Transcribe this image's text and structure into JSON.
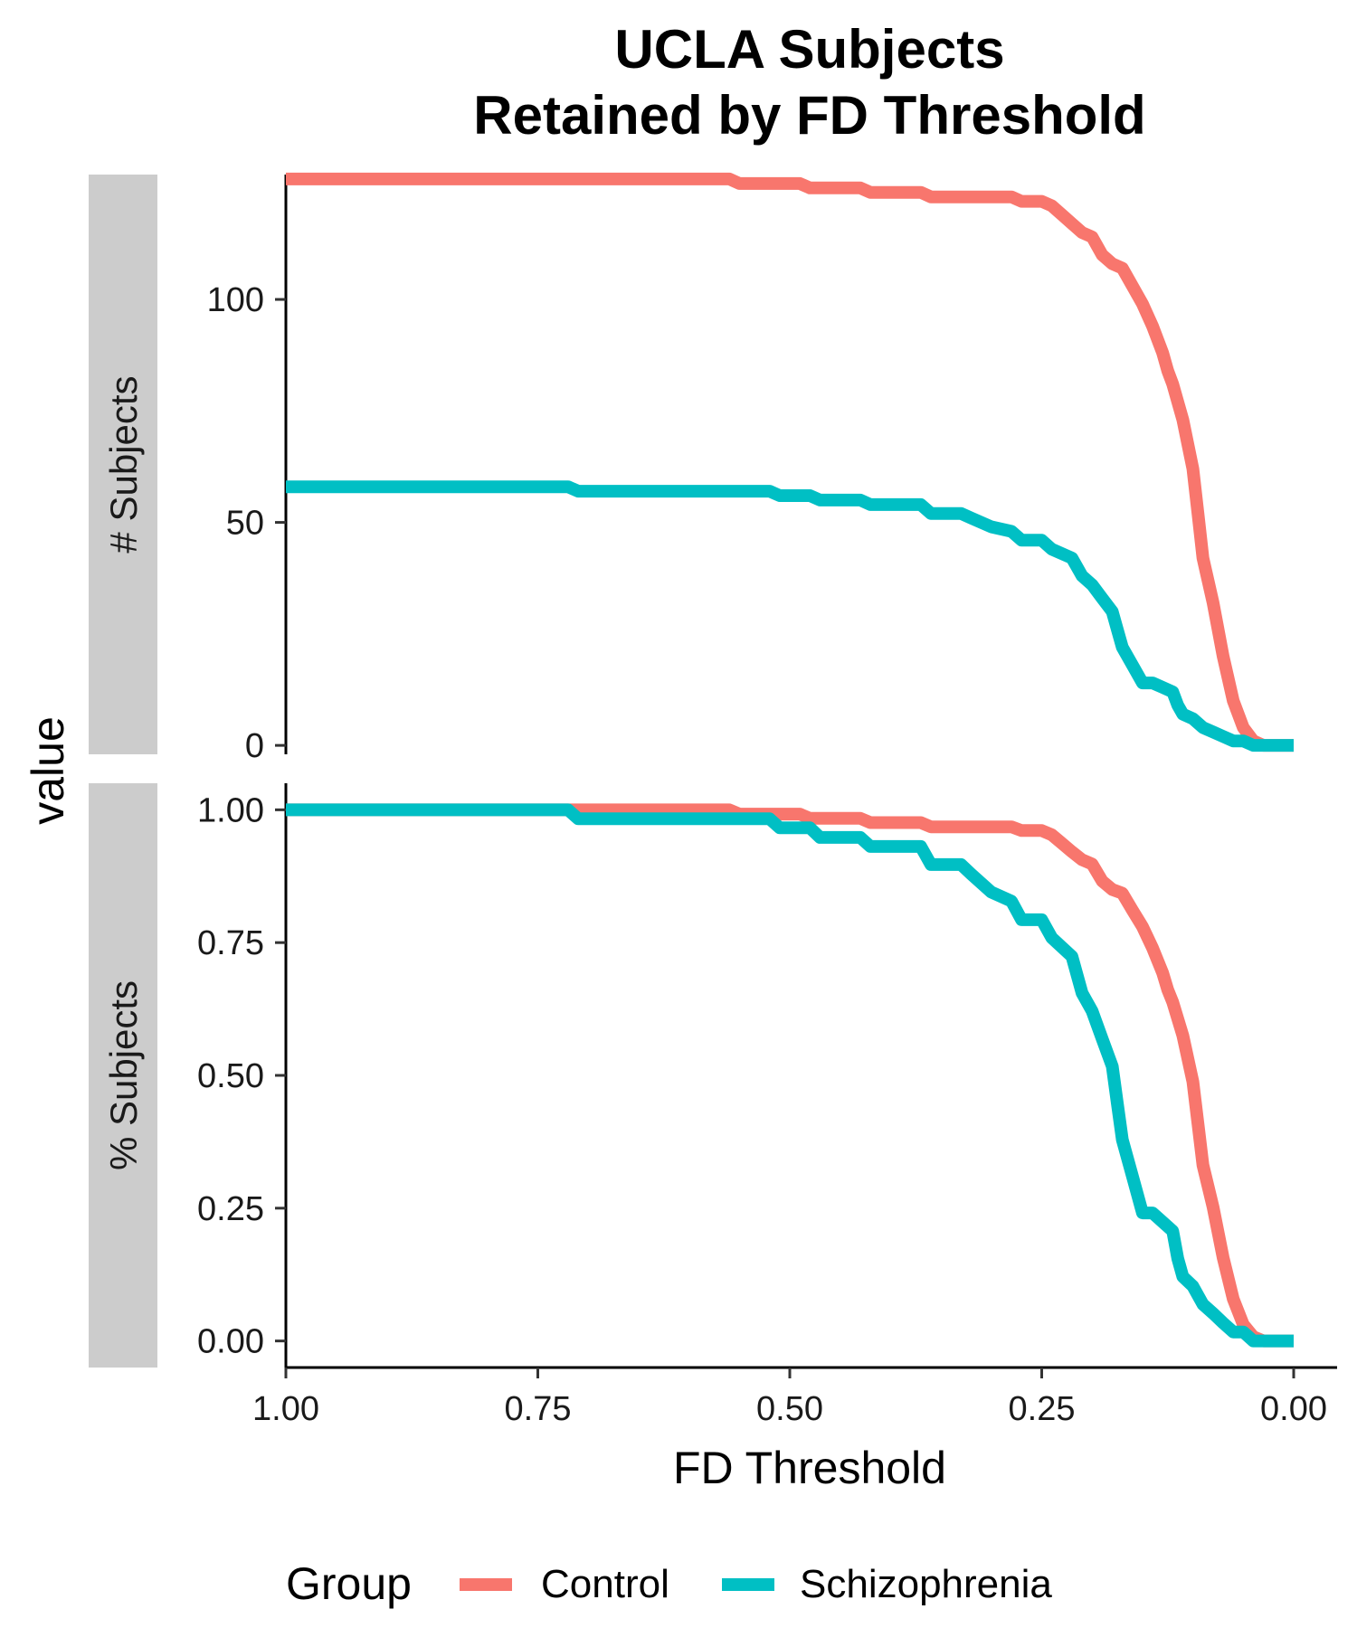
{
  "chart_data": {
    "type": "line",
    "title": [
      "UCLA Subjects",
      "Retained by FD Threshold"
    ],
    "xlabel": "FD Threshold",
    "ylabel": "value",
    "x_reversed": true,
    "xlim": [
      1.0,
      0.0
    ],
    "x_ticks": [
      "1.00",
      "0.75",
      "0.50",
      "0.25",
      "0.00"
    ],
    "grid": false,
    "legend": {
      "title": "Group",
      "placement": "bottom"
    },
    "series_styles": [
      {
        "name": "Control",
        "color": "#F8766D"
      },
      {
        "name": "Schizophrenia",
        "color": "#00BFC4"
      }
    ],
    "panels": [
      {
        "strip": "# Subjects",
        "ylim": [
          -2,
          128
        ],
        "y_ticks": [
          "0",
          "50",
          "100"
        ],
        "series": [
          {
            "name": "Control",
            "color": "#F8766D",
            "points": [
              [
                1.0,
                127
              ],
              [
                0.56,
                127
              ],
              [
                0.55,
                126
              ],
              [
                0.49,
                126
              ],
              [
                0.48,
                125
              ],
              [
                0.43,
                125
              ],
              [
                0.42,
                124
              ],
              [
                0.37,
                124
              ],
              [
                0.36,
                123
              ],
              [
                0.28,
                123
              ],
              [
                0.27,
                122
              ],
              [
                0.25,
                122
              ],
              [
                0.24,
                121
              ],
              [
                0.23,
                119
              ],
              [
                0.22,
                117
              ],
              [
                0.21,
                115
              ],
              [
                0.2,
                114
              ],
              [
                0.19,
                110
              ],
              [
                0.18,
                108
              ],
              [
                0.17,
                107
              ],
              [
                0.16,
                103
              ],
              [
                0.15,
                99
              ],
              [
                0.14,
                94
              ],
              [
                0.13,
                88
              ],
              [
                0.125,
                84
              ],
              [
                0.12,
                81
              ],
              [
                0.11,
                73
              ],
              [
                0.1,
                62
              ],
              [
                0.095,
                52
              ],
              [
                0.09,
                42
              ],
              [
                0.08,
                32
              ],
              [
                0.07,
                20
              ],
              [
                0.06,
                10
              ],
              [
                0.05,
                4
              ],
              [
                0.04,
                1
              ],
              [
                0.03,
                0
              ],
              [
                0.0,
                0
              ]
            ]
          },
          {
            "name": "Schizophrenia",
            "color": "#00BFC4",
            "points": [
              [
                1.0,
                58
              ],
              [
                0.72,
                58
              ],
              [
                0.71,
                57
              ],
              [
                0.52,
                57
              ],
              [
                0.51,
                56
              ],
              [
                0.48,
                56
              ],
              [
                0.47,
                55
              ],
              [
                0.43,
                55
              ],
              [
                0.42,
                54
              ],
              [
                0.37,
                54
              ],
              [
                0.36,
                52
              ],
              [
                0.33,
                52
              ],
              [
                0.32,
                51
              ],
              [
                0.3,
                49
              ],
              [
                0.28,
                48
              ],
              [
                0.27,
                46
              ],
              [
                0.25,
                46
              ],
              [
                0.24,
                44
              ],
              [
                0.22,
                42
              ],
              [
                0.21,
                38
              ],
              [
                0.2,
                36
              ],
              [
                0.19,
                33
              ],
              [
                0.18,
                30
              ],
              [
                0.175,
                26
              ],
              [
                0.17,
                22
              ],
              [
                0.16,
                18
              ],
              [
                0.15,
                14
              ],
              [
                0.14,
                14
              ],
              [
                0.13,
                13
              ],
              [
                0.12,
                12
              ],
              [
                0.115,
                9
              ],
              [
                0.11,
                7
              ],
              [
                0.1,
                6
              ],
              [
                0.09,
                4
              ],
              [
                0.08,
                3
              ],
              [
                0.07,
                2
              ],
              [
                0.06,
                1
              ],
              [
                0.05,
                1
              ],
              [
                0.04,
                0
              ],
              [
                0.0,
                0
              ]
            ]
          }
        ]
      },
      {
        "strip": "% Subjects",
        "ylim": [
          -0.05,
          1.05
        ],
        "y_ticks": [
          "0.00",
          "0.25",
          "0.50",
          "0.75",
          "1.00"
        ],
        "series": [
          {
            "name": "Control",
            "color": "#F8766D",
            "points": [
              [
                1.0,
                1.0
              ],
              [
                0.56,
                1.0
              ],
              [
                0.55,
                0.992
              ],
              [
                0.49,
                0.992
              ],
              [
                0.48,
                0.984
              ],
              [
                0.43,
                0.984
              ],
              [
                0.42,
                0.976
              ],
              [
                0.37,
                0.976
              ],
              [
                0.36,
                0.968
              ],
              [
                0.28,
                0.968
              ],
              [
                0.27,
                0.961
              ],
              [
                0.25,
                0.961
              ],
              [
                0.24,
                0.953
              ],
              [
                0.23,
                0.937
              ],
              [
                0.22,
                0.921
              ],
              [
                0.21,
                0.906
              ],
              [
                0.2,
                0.898
              ],
              [
                0.19,
                0.866
              ],
              [
                0.18,
                0.85
              ],
              [
                0.17,
                0.843
              ],
              [
                0.16,
                0.811
              ],
              [
                0.15,
                0.78
              ],
              [
                0.14,
                0.74
              ],
              [
                0.13,
                0.693
              ],
              [
                0.125,
                0.661
              ],
              [
                0.12,
                0.638
              ],
              [
                0.11,
                0.575
              ],
              [
                0.1,
                0.488
              ],
              [
                0.095,
                0.409
              ],
              [
                0.09,
                0.331
              ],
              [
                0.08,
                0.252
              ],
              [
                0.07,
                0.157
              ],
              [
                0.06,
                0.079
              ],
              [
                0.05,
                0.031
              ],
              [
                0.04,
                0.008
              ],
              [
                0.03,
                0.0
              ],
              [
                0.0,
                0.0
              ]
            ]
          },
          {
            "name": "Schizophrenia",
            "color": "#00BFC4",
            "points": [
              [
                1.0,
                1.0
              ],
              [
                0.72,
                1.0
              ],
              [
                0.71,
                0.983
              ],
              [
                0.52,
                0.983
              ],
              [
                0.51,
                0.966
              ],
              [
                0.48,
                0.966
              ],
              [
                0.47,
                0.948
              ],
              [
                0.43,
                0.948
              ],
              [
                0.42,
                0.931
              ],
              [
                0.37,
                0.931
              ],
              [
                0.36,
                0.897
              ],
              [
                0.33,
                0.897
              ],
              [
                0.32,
                0.879
              ],
              [
                0.3,
                0.845
              ],
              [
                0.28,
                0.828
              ],
              [
                0.27,
                0.793
              ],
              [
                0.25,
                0.793
              ],
              [
                0.24,
                0.759
              ],
              [
                0.22,
                0.724
              ],
              [
                0.21,
                0.655
              ],
              [
                0.2,
                0.621
              ],
              [
                0.19,
                0.569
              ],
              [
                0.18,
                0.517
              ],
              [
                0.175,
                0.448
              ],
              [
                0.17,
                0.379
              ],
              [
                0.16,
                0.31
              ],
              [
                0.15,
                0.241
              ],
              [
                0.14,
                0.241
              ],
              [
                0.13,
                0.224
              ],
              [
                0.12,
                0.207
              ],
              [
                0.115,
                0.155
              ],
              [
                0.11,
                0.121
              ],
              [
                0.1,
                0.103
              ],
              [
                0.09,
                0.069
              ],
              [
                0.08,
                0.052
              ],
              [
                0.07,
                0.034
              ],
              [
                0.06,
                0.017
              ],
              [
                0.05,
                0.017
              ],
              [
                0.04,
                0.0
              ],
              [
                0.0,
                0.0
              ]
            ]
          }
        ]
      }
    ]
  }
}
